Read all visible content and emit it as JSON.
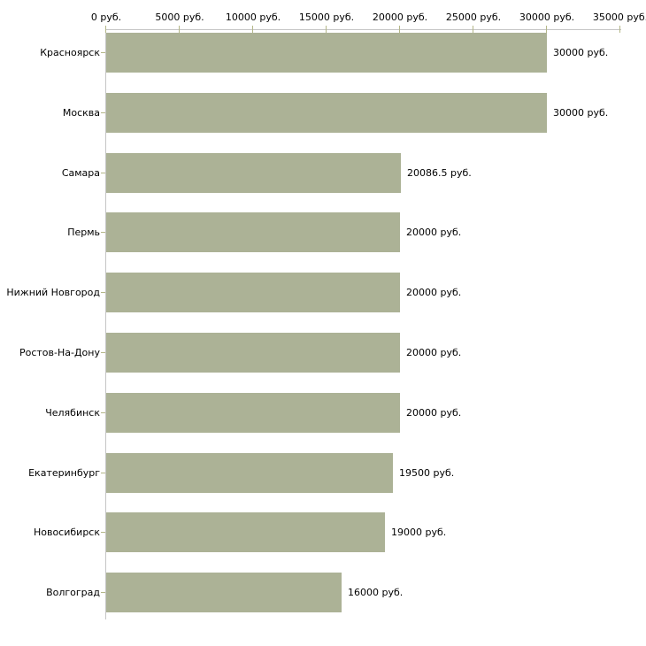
{
  "chart_data": {
    "type": "bar",
    "orientation": "horizontal",
    "title": "",
    "xlabel": "",
    "ylabel": "",
    "unit": "руб.",
    "categories": [
      "Красноярск",
      "Москва",
      "Самара",
      "Пермь",
      "Нижний Новгород",
      "Ростов-На-Дону",
      "Челябинск",
      "Екатеринбург",
      "Новосибирск",
      "Волгоград"
    ],
    "values": [
      30000,
      30000,
      20086.5,
      20000,
      20000,
      20000,
      20000,
      19500,
      19000,
      16000
    ],
    "value_labels": [
      "30000 руб.",
      "30000 руб.",
      "20086.5 руб.",
      "20000 руб.",
      "20000 руб.",
      "20000 руб.",
      "20000 руб.",
      "19500 руб.",
      "19000 руб.",
      "16000 руб."
    ],
    "x_ticks": [
      0,
      5000,
      10000,
      15000,
      20000,
      25000,
      30000,
      35000
    ],
    "x_tick_labels": [
      "0 руб.",
      "5000 руб.",
      "10000 руб.",
      "15000 руб.",
      "20000 руб.",
      "25000 руб.",
      "30000 руб.",
      "35000 руб."
    ],
    "xlim": [
      0,
      35000
    ],
    "axis_position": "top",
    "grid": false,
    "legend": false,
    "colors": {
      "bar": "#acb296",
      "axis_line": "#c6c6c6",
      "tick_mark": "#b4b788",
      "text": "#000000",
      "background": "#ffffff"
    }
  }
}
